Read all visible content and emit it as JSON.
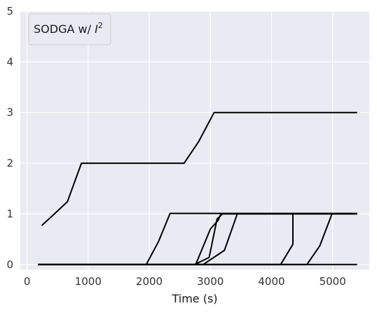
{
  "chart_data": {
    "type": "line",
    "legend": {
      "label_prefix": "SODGA w/ ",
      "label_symbol": "I",
      "label_superscript": "2",
      "placement": "upper-left"
    },
    "xlabel": "Time (s)",
    "ylabel": "",
    "xlim": [
      -110,
      5600
    ],
    "ylim": [
      -0.1,
      5.0
    ],
    "x_ticks": [
      0,
      1000,
      2000,
      3000,
      4000,
      5000
    ],
    "y_ticks": [
      0,
      1,
      2,
      3,
      4,
      5
    ],
    "grid": true,
    "style": {
      "background": "#EAEAF2",
      "grid_color": "#FFFFFF",
      "line_color": "#000000"
    },
    "series": [
      {
        "x": [
          240,
          450,
          660,
          890,
          2570,
          2810,
          3060,
          5400
        ],
        "y": [
          0.77,
          1.0,
          1.24,
          2.0,
          2.0,
          2.43,
          3.0,
          3.0
        ]
      },
      {
        "x": [
          180,
          1950,
          2150,
          2340,
          5400
        ],
        "y": [
          0.0,
          0.0,
          0.45,
          1.01,
          1.01
        ]
      },
      {
        "x": [
          180,
          2760,
          3000,
          3130,
          3170,
          5400
        ],
        "y": [
          0.0,
          0.0,
          0.7,
          0.88,
          1.0,
          1.0
        ]
      },
      {
        "x": [
          180,
          2740,
          2980,
          3110,
          3200,
          5400
        ],
        "y": [
          0.0,
          0.0,
          0.14,
          0.9,
          1.0,
          1.0
        ]
      },
      {
        "x": [
          180,
          2880,
          3230,
          3440,
          5400
        ],
        "y": [
          0.0,
          0.0,
          0.28,
          1.0,
          1.0
        ]
      },
      {
        "x": [
          180,
          4150,
          4350,
          4350
        ],
        "y": [
          0.0,
          0.0,
          0.4,
          1.0
        ]
      },
      {
        "x": [
          180,
          4580,
          4790,
          4990,
          5400
        ],
        "y": [
          0.0,
          0.0,
          0.37,
          1.0,
          1.0
        ]
      },
      {
        "x": [
          180,
          5400
        ],
        "y": [
          0.0,
          0.0
        ]
      }
    ]
  }
}
